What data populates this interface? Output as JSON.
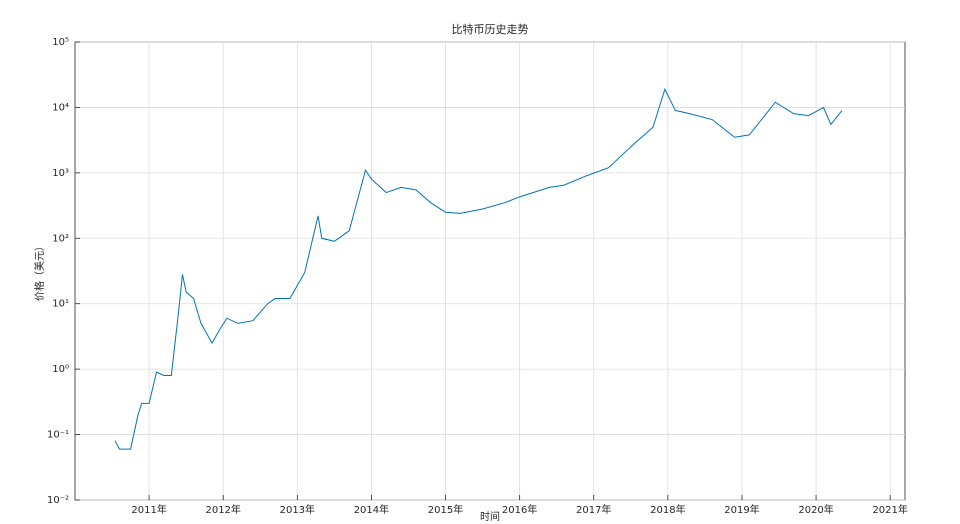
{
  "chart_data": {
    "type": "line",
    "title": "比特币历史走势",
    "x_label": "时间",
    "y_label": "价格（美元）",
    "log_y": true,
    "grid": true,
    "color": "#0072bd",
    "xlim": [
      2010,
      2021.2
    ],
    "xticks": [
      {
        "value": 2011,
        "label": "2011年"
      },
      {
        "value": 2012,
        "label": "2012年"
      },
      {
        "value": 2013,
        "label": "2013年"
      },
      {
        "value": 2014,
        "label": "2014年"
      },
      {
        "value": 2015,
        "label": "2015年"
      },
      {
        "value": 2016,
        "label": "2016年"
      },
      {
        "value": 2017,
        "label": "2017年"
      },
      {
        "value": 2018,
        "label": "2018年"
      },
      {
        "value": 2019,
        "label": "2019年"
      },
      {
        "value": 2020,
        "label": "2020年"
      },
      {
        "value": 2021,
        "label": "2021年"
      }
    ],
    "ylim": [
      0.01,
      100000
    ],
    "yticks": [
      {
        "value": 0.01,
        "label": "10⁻²"
      },
      {
        "value": 0.1,
        "label": "10⁻¹"
      },
      {
        "value": 1,
        "label": "10⁰"
      },
      {
        "value": 10,
        "label": "10¹"
      },
      {
        "value": 100,
        "label": "10²"
      },
      {
        "value": 1000,
        "label": "10³"
      },
      {
        "value": 10000,
        "label": "10⁴"
      },
      {
        "value": 100000,
        "label": "10⁵"
      }
    ],
    "x": [
      2010.54,
      2010.6,
      2010.75,
      2010.85,
      2010.9,
      2011.0,
      2011.1,
      2011.2,
      2011.3,
      2011.4,
      2011.45,
      2011.5,
      2011.6,
      2011.7,
      2011.85,
      2011.95,
      2012.05,
      2012.2,
      2012.4,
      2012.6,
      2012.7,
      2012.9,
      2013.1,
      2013.28,
      2013.33,
      2013.5,
      2013.7,
      2013.92,
      2014.0,
      2014.2,
      2014.4,
      2014.6,
      2014.8,
      2015.0,
      2015.2,
      2015.5,
      2015.8,
      2016.0,
      2016.4,
      2016.6,
      2016.9,
      2017.2,
      2017.5,
      2017.8,
      2017.96,
      2018.1,
      2018.3,
      2018.6,
      2018.9,
      2019.1,
      2019.45,
      2019.7,
      2019.9,
      2020.1,
      2020.2,
      2020.35
    ],
    "values": [
      0.08,
      0.06,
      0.06,
      0.2,
      0.3,
      0.3,
      0.9,
      0.8,
      0.8,
      8,
      28,
      15,
      12,
      5,
      2.5,
      4,
      6,
      5,
      5.5,
      10,
      12,
      12,
      30,
      220,
      100,
      90,
      130,
      1100,
      800,
      500,
      600,
      550,
      350,
      250,
      240,
      280,
      350,
      430,
      600,
      650,
      900,
      1200,
      2500,
      5000,
      19000,
      9000,
      8000,
      6500,
      3500,
      3800,
      12000,
      8000,
      7500,
      10000,
      5500,
      9000
    ]
  }
}
